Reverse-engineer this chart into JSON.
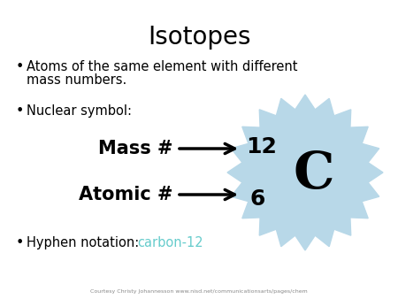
{
  "title": "Isotopes",
  "bullet1_line1": "Atoms of the same element with different",
  "bullet1_line2": "mass numbers.",
  "bullet2": "Nuclear symbol:",
  "bullet3_prefix": "Hyphen notation: ",
  "bullet3_colored": "carbon-12",
  "mass_label": "Mass #",
  "atomic_label": "Atomic #",
  "mass_number": "12",
  "atomic_number": "6",
  "element_symbol": "C",
  "courtesy": "Courtesy Christy Johannesson www.nisd.net/communicationsarts/pages/chem",
  "bg_color": "#ffffff",
  "title_color": "#000000",
  "text_color": "#000000",
  "highlight_color": "#66cccc",
  "starburst_color": "#b8d8e8",
  "arrow_color": "#000000",
  "title_fontsize": 20,
  "body_fontsize": 10.5,
  "mass_atomic_fontsize": 15,
  "symbol_fontsize": 42,
  "number_fontsize": 18,
  "courtesy_fontsize": 4.5
}
